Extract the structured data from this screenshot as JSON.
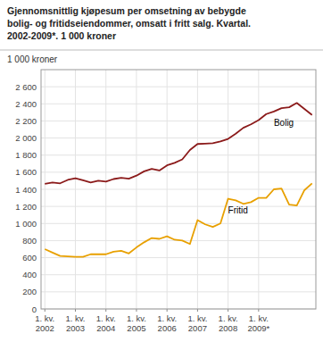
{
  "chart_data": {
    "type": "line",
    "title": "Gjennomsnittlig kjøpesum per omsetning av bebygde\nbolig- og fritidseiendommer, omsatt i fritt salg. Kvartal.\n2002-2009*. 1 000 kroner",
    "y_label": "1 000 kroner",
    "categories": [
      "1. kv.\n2002",
      null,
      null,
      null,
      "1. kv.\n2003",
      null,
      null,
      null,
      "1. kv.\n2004",
      null,
      null,
      null,
      "1. kv.\n2005",
      null,
      null,
      null,
      "1. kv.\n2006",
      null,
      null,
      null,
      "1. kv.\n2007",
      null,
      null,
      null,
      "1. kv.\n2008",
      null,
      null,
      null,
      "1. kv.\n2009*",
      null,
      null,
      null,
      null,
      null,
      null,
      null
    ],
    "series": [
      {
        "name": "Bolig",
        "color": "#8B1A1A",
        "values": [
          1465,
          1480,
          1470,
          1510,
          1530,
          1505,
          1480,
          1500,
          1490,
          1520,
          1535,
          1525,
          1560,
          1610,
          1640,
          1620,
          1680,
          1710,
          1750,
          1860,
          1930,
          1935,
          1940,
          1960,
          1990,
          2050,
          2120,
          2160,
          2210,
          2280,
          2310,
          2350,
          2360,
          2410,
          2340,
          2270
        ]
      },
      {
        "name": "Fritid",
        "color": "#E8A000",
        "values": [
          700,
          660,
          620,
          615,
          610,
          610,
          640,
          640,
          640,
          670,
          680,
          650,
          720,
          780,
          830,
          820,
          850,
          810,
          800,
          760,
          1040,
          990,
          960,
          1000,
          1290,
          1270,
          1230,
          1250,
          1300,
          1300,
          1400,
          1410,
          1220,
          1210,
          1390,
          1470
        ]
      }
    ],
    "ylim": [
      0,
      2800
    ],
    "yticks": [
      0,
      200,
      400,
      600,
      800,
      {
        "value": 1000,
        "label": "1 000"
      },
      {
        "value": 1200,
        "label": "1 200"
      },
      {
        "value": 1400,
        "label": "1 400"
      },
      {
        "value": 1600,
        "label": "1 600"
      },
      {
        "value": 1800,
        "label": "1 800"
      },
      {
        "value": 2000,
        "label": "2 000"
      },
      {
        "value": 2200,
        "label": "2 200"
      },
      {
        "value": 2400,
        "label": "2 400"
      },
      {
        "value": 2600,
        "label": "2 600"
      }
    ],
    "grid": true
  }
}
